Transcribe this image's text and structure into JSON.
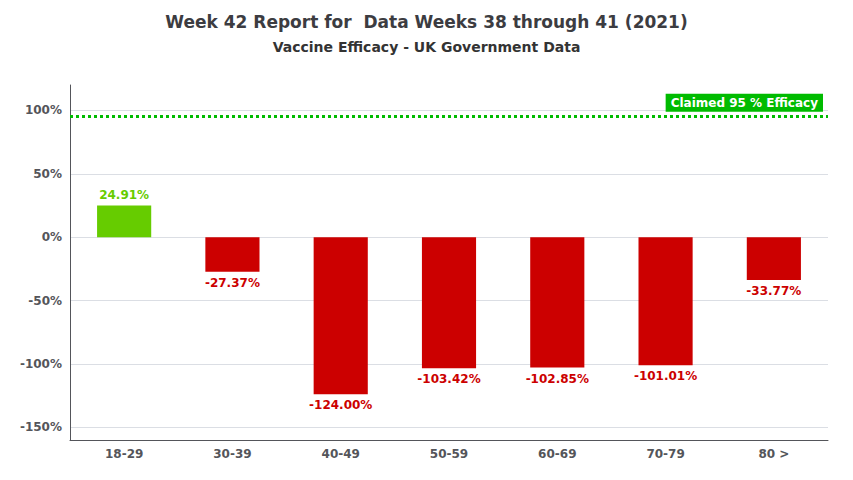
{
  "chart_data": {
    "type": "bar",
    "title": "Week 42 Report for  Data Weeks 38 through 41 (2021)",
    "subtitle": "Vaccine Efficacy - UK Government Data",
    "categories": [
      "18-29",
      "30-39",
      "40-49",
      "50-59",
      "60-69",
      "70-79",
      "80 >"
    ],
    "values": [
      24.91,
      -27.37,
      -124.0,
      -103.42,
      -102.85,
      -101.01,
      -33.77
    ],
    "value_labels": [
      "24.91%",
      "-27.37%",
      "-124.00%",
      "-103.42%",
      "-102.85%",
      "-101.01%",
      "-33.77%"
    ],
    "data_labels": true,
    "colors": [
      "#66cc00",
      "#cc0000",
      "#cc0000",
      "#cc0000",
      "#cc0000",
      "#cc0000",
      "#cc0000"
    ],
    "ylim": [
      -160,
      120
    ],
    "yticks": [
      {
        "value": -150,
        "label": "-150%"
      },
      {
        "value": -100,
        "label": "-100%"
      },
      {
        "value": -50,
        "label": "-50%"
      },
      {
        "value": 0,
        "label": "0%"
      },
      {
        "value": 50,
        "label": "50%"
      },
      {
        "value": 100,
        "label": "100%"
      }
    ],
    "grid": true,
    "annotations": [
      {
        "text": "Claimed 95 % Efficacy",
        "y": 95,
        "color": "#00bb00"
      }
    ]
  }
}
